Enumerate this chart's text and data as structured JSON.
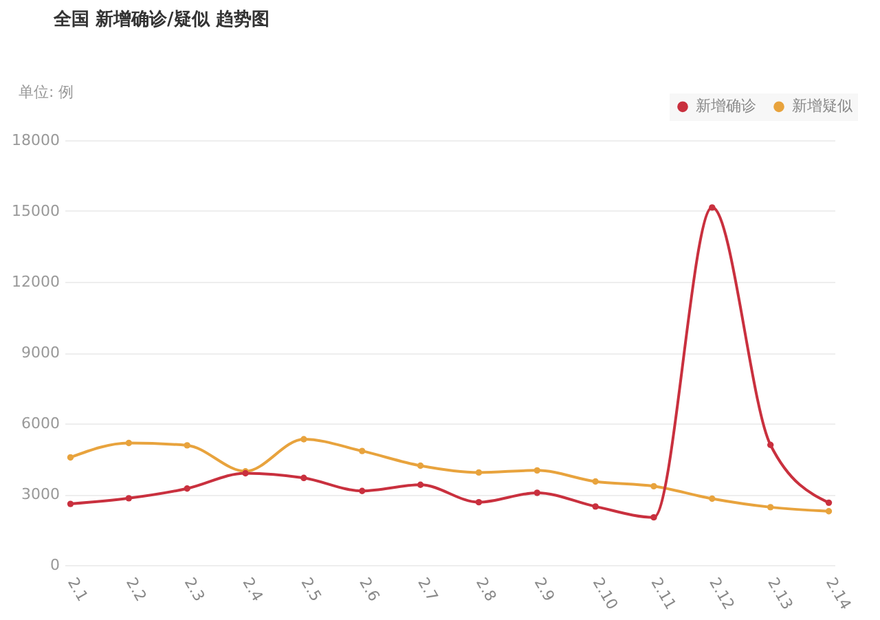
{
  "chart_data": {
    "type": "line",
    "title": "全国 新增确诊/疑似 趋势图",
    "ylabel": "单位: 例",
    "categories": [
      "2.1",
      "2.2",
      "2.3",
      "2.4",
      "2.5",
      "2.6",
      "2.7",
      "2.8",
      "2.9",
      "2.10",
      "2.11",
      "2.12",
      "2.13",
      "2.14"
    ],
    "series": [
      {
        "name": "新增确诊",
        "color": "#c9303e",
        "values": [
          2590,
          2830,
          3240,
          3890,
          3690,
          3140,
          3400,
          2660,
          3060,
          2480,
          2020,
          15150,
          5090,
          2640
        ]
      },
      {
        "name": "新增疑似",
        "color": "#e8a33d",
        "values": [
          4560,
          5170,
          5070,
          3970,
          5330,
          4830,
          4210,
          3920,
          4010,
          3540,
          3340,
          2810,
          2450,
          2280
        ]
      }
    ],
    "ylim": [
      0,
      18000
    ],
    "yticks": [
      0,
      3000,
      6000,
      9000,
      12000,
      15000,
      18000
    ],
    "grid": "y",
    "legend": "top right",
    "marker": "circle",
    "line_style": "solid"
  }
}
